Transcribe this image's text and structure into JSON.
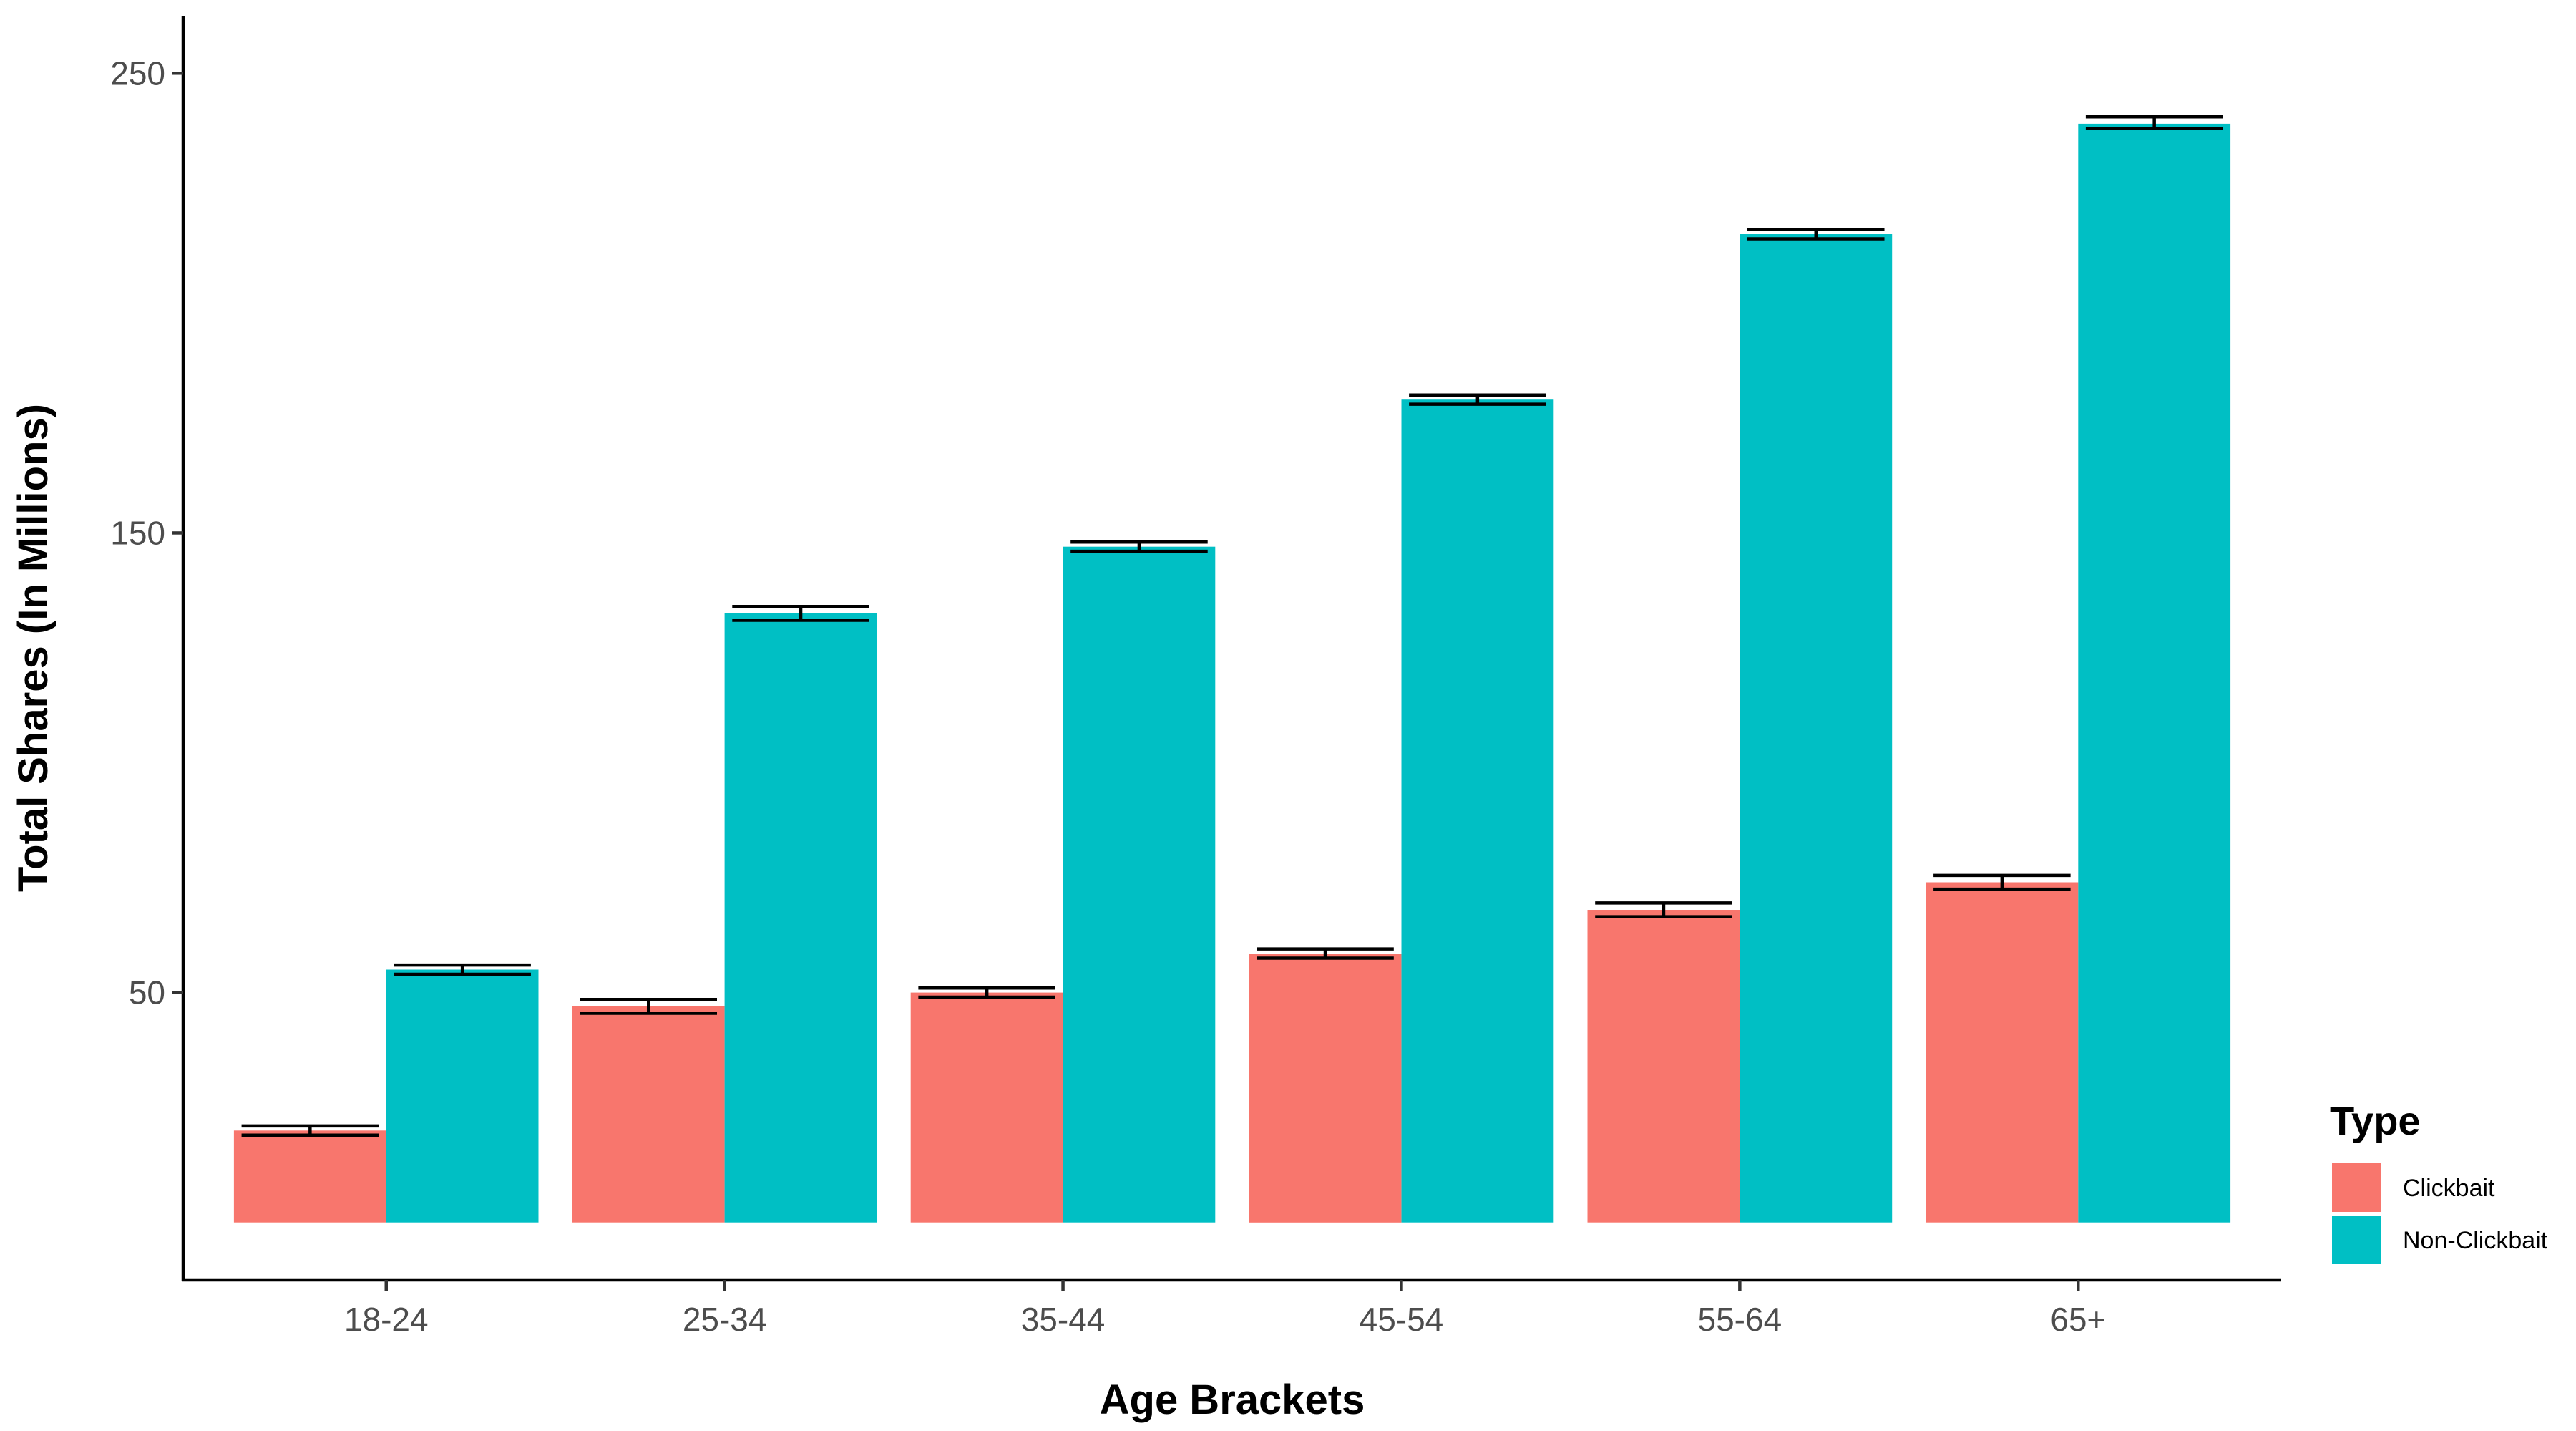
{
  "chart_data": {
    "type": "bar",
    "categories": [
      "18-24",
      "25-34",
      "35-44",
      "45-54",
      "55-64",
      "65+"
    ],
    "series": [
      {
        "name": "Clickbait",
        "color": "#F8766D",
        "values": [
          20,
          47,
          50,
          58.5,
          68,
          74
        ],
        "error_low": [
          19,
          45.5,
          49,
          57.5,
          66.5,
          72.5
        ],
        "error_high": [
          21,
          48.5,
          51,
          59.5,
          69.5,
          75.5
        ]
      },
      {
        "name": "Non-Clickbait",
        "color": "#00BFC4",
        "values": [
          55,
          132.5,
          147,
          179,
          215,
          239
        ],
        "error_low": [
          54,
          131,
          146,
          178,
          214,
          238
        ],
        "error_high": [
          56,
          134,
          148,
          180,
          216,
          240.5
        ]
      }
    ],
    "xlabel": "Age Brackets",
    "ylabel": "Total Shares (In Millions)",
    "y_ticks": [
      50,
      150,
      250
    ],
    "ylim": [
      -12.5,
      262.5
    ],
    "grid": false,
    "legend": {
      "title": "Type",
      "position": "right-bottom"
    }
  }
}
